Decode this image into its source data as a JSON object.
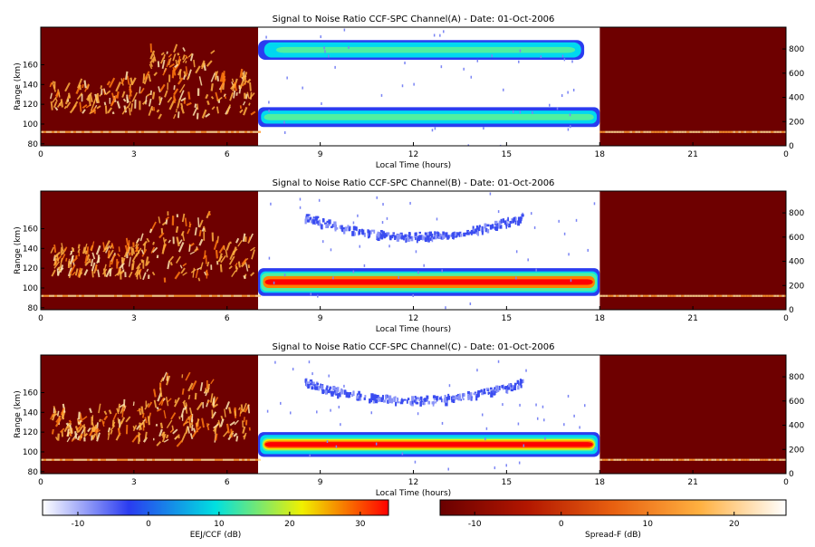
{
  "chart_data": [
    {
      "type": "heatmap",
      "title": "Signal to Noise Ratio CCF-SPC Channel(A) - Date: 01-Oct-2006",
      "xlabel": "Local Time (hours)",
      "ylabel": "Range (km)",
      "x_ticks": [
        "0",
        "3",
        "6",
        "9",
        "12",
        "15",
        "18",
        "21",
        "0"
      ],
      "y_ticks": [
        "80",
        "100",
        "120",
        "140",
        "160"
      ],
      "y2_ticks": [
        "0",
        "200",
        "400",
        "600",
        "800"
      ],
      "xlim": [
        0,
        24
      ],
      "ylim": [
        78,
        198
      ],
      "y2lim": [
        0,
        980
      ],
      "night_intervals": [
        [
          0,
          7
        ],
        [
          18,
          24
        ]
      ],
      "day_interval": [
        7,
        18
      ],
      "features": [
        {
          "kind": "spread-f",
          "time": [
            0.3,
            6.8
          ],
          "range": [
            100,
            170
          ]
        },
        {
          "kind": "eej-layer",
          "time": [
            7,
            18
          ],
          "range": [
            97,
            117
          ],
          "peak_db": 12
        },
        {
          "kind": "150km-echo",
          "time": [
            7,
            17.5
          ],
          "range": [
            165,
            185
          ],
          "peak_db": 10
        },
        {
          "kind": "night-line",
          "time": [
            0,
            7
          ],
          "range": [
            91,
            93
          ]
        },
        {
          "kind": "night-line",
          "time": [
            18,
            24
          ],
          "range": [
            91,
            93
          ]
        }
      ]
    },
    {
      "type": "heatmap",
      "title": "Signal to Noise Ratio CCF-SPC Channel(B) - Date: 01-Oct-2006",
      "xlabel": "Local Time (hours)",
      "ylabel": "Range (km)",
      "x_ticks": [
        "0",
        "3",
        "6",
        "9",
        "12",
        "15",
        "18",
        "21",
        "0"
      ],
      "y_ticks": [
        "80",
        "100",
        "120",
        "140",
        "160"
      ],
      "y2_ticks": [
        "0",
        "200",
        "400",
        "600",
        "800"
      ],
      "xlim": [
        0,
        24
      ],
      "ylim": [
        78,
        198
      ],
      "y2lim": [
        0,
        980
      ],
      "night_intervals": [
        [
          0,
          7
        ],
        [
          18,
          24
        ]
      ],
      "day_interval": [
        7,
        18
      ],
      "features": [
        {
          "kind": "spread-f",
          "time": [
            0.3,
            6.8
          ],
          "range": [
            100,
            170
          ]
        },
        {
          "kind": "eej-layer",
          "time": [
            7,
            18
          ],
          "range": [
            92,
            120
          ],
          "peak_db": 32
        },
        {
          "kind": "150km-echo",
          "time": [
            8.5,
            15.5
          ],
          "range": [
            150,
            170
          ],
          "peak_db": -8
        },
        {
          "kind": "night-line",
          "time": [
            0,
            7
          ],
          "range": [
            91,
            93
          ]
        },
        {
          "kind": "night-line",
          "time": [
            18,
            24
          ],
          "range": [
            91,
            93
          ]
        }
      ]
    },
    {
      "type": "heatmap",
      "title": "Signal to Noise Ratio CCF-SPC Channel(C) - Date: 01-Oct-2006",
      "xlabel": "Local Time (hours)",
      "ylabel": "Range (km)",
      "x_ticks": [
        "0",
        "3",
        "6",
        "9",
        "12",
        "15",
        "18",
        "21",
        "0"
      ],
      "y_ticks": [
        "80",
        "100",
        "120",
        "140",
        "160"
      ],
      "y2_ticks": [
        "0",
        "200",
        "400",
        "600",
        "800"
      ],
      "xlim": [
        0,
        24
      ],
      "ylim": [
        78,
        198
      ],
      "y2lim": [
        0,
        980
      ],
      "night_intervals": [
        [
          0,
          7
        ],
        [
          18,
          24
        ]
      ],
      "day_interval": [
        7,
        18
      ],
      "features": [
        {
          "kind": "spread-f",
          "time": [
            0.3,
            6.8
          ],
          "range": [
            100,
            170
          ]
        },
        {
          "kind": "eej-layer",
          "time": [
            7,
            18
          ],
          "range": [
            95,
            120
          ],
          "peak_db": 30
        },
        {
          "kind": "150km-echo",
          "time": [
            8.5,
            15.5
          ],
          "range": [
            150,
            168
          ],
          "peak_db": -8
        },
        {
          "kind": "night-line",
          "time": [
            0,
            7
          ],
          "range": [
            91,
            93
          ]
        },
        {
          "kind": "night-line",
          "time": [
            18,
            24
          ],
          "range": [
            91,
            93
          ]
        }
      ]
    }
  ],
  "colorbars": [
    {
      "label": "EEJ/CCF (dB)",
      "ticks": [
        "-10",
        "0",
        "10",
        "20",
        "30"
      ],
      "range": [
        -15,
        34
      ],
      "colors": [
        "#ffffff",
        "#2a3cf0",
        "#00e0e0",
        "#f0f000",
        "#ff0000"
      ]
    },
    {
      "label": "Spread-F (dB)",
      "ticks": [
        "-10",
        "0",
        "10",
        "20"
      ],
      "range": [
        -14,
        26
      ],
      "colors": [
        "#6a0000",
        "#b21600",
        "#e86010",
        "#ffb040",
        "#ffffff"
      ]
    }
  ]
}
